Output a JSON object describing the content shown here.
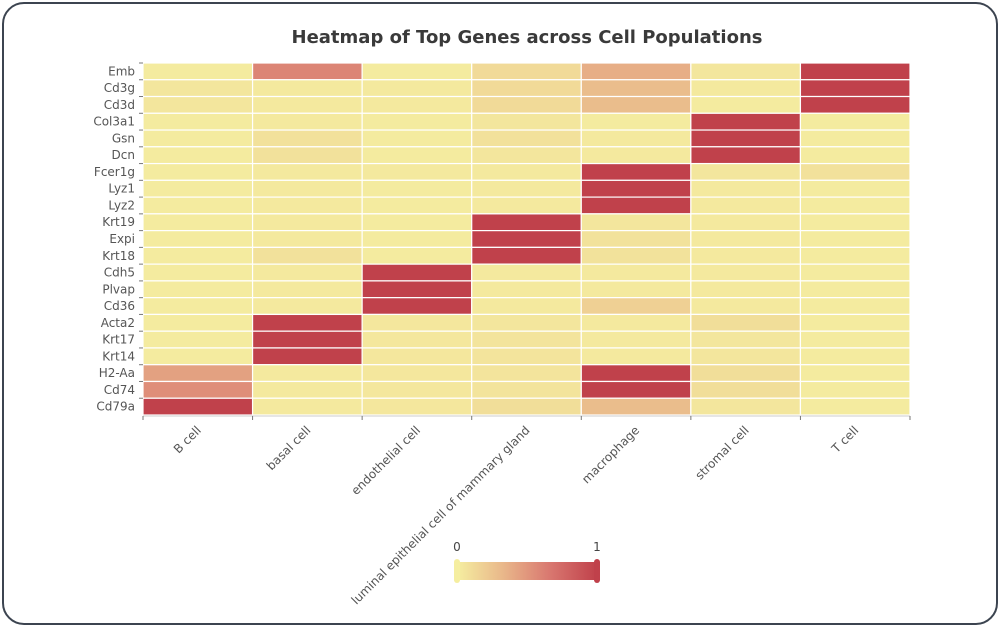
{
  "chart_data": {
    "type": "heatmap",
    "title": "Heatmap of Top Genes across Cell Populations",
    "xlabel": "",
    "ylabel": "",
    "x_categories": [
      "B cell",
      "basal cell",
      "endothelial cell",
      "luminal epithelial cell of mammary gland",
      "macrophage",
      "stromal cell",
      "T cell"
    ],
    "y_categories": [
      "Emb",
      "Cd3g",
      "Cd3d",
      "Col3a1",
      "Gsn",
      "Dcn",
      "Fcer1g",
      "Lyz1",
      "Lyz2",
      "Krt19",
      "Expi",
      "Krt18",
      "Cdh5",
      "Plvap",
      "Cd36",
      "Acta2",
      "Krt17",
      "Krt14",
      "H2-Aa",
      "Cd74",
      "Cd79a"
    ],
    "values": [
      [
        0.02,
        0.6,
        0.02,
        0.12,
        0.38,
        0.05,
        1.0
      ],
      [
        0.05,
        0.03,
        0.03,
        0.12,
        0.3,
        0.03,
        1.0
      ],
      [
        0.05,
        0.03,
        0.03,
        0.12,
        0.3,
        0.02,
        1.0
      ],
      [
        0.02,
        0.03,
        0.02,
        0.05,
        0.02,
        1.0,
        0.02
      ],
      [
        0.02,
        0.08,
        0.02,
        0.08,
        0.03,
        1.0,
        0.02
      ],
      [
        0.02,
        0.08,
        0.02,
        0.05,
        0.03,
        1.0,
        0.02
      ],
      [
        0.02,
        0.03,
        0.03,
        0.03,
        1.0,
        0.05,
        0.08
      ],
      [
        0.02,
        0.03,
        0.02,
        0.03,
        1.0,
        0.03,
        0.02
      ],
      [
        0.02,
        0.03,
        0.02,
        0.03,
        1.0,
        0.03,
        0.02
      ],
      [
        0.02,
        0.03,
        0.02,
        1.0,
        0.05,
        0.03,
        0.02
      ],
      [
        0.02,
        0.03,
        0.02,
        1.0,
        0.07,
        0.03,
        0.02
      ],
      [
        0.02,
        0.08,
        0.02,
        1.0,
        0.07,
        0.03,
        0.02
      ],
      [
        0.02,
        0.03,
        1.0,
        0.03,
        0.03,
        0.03,
        0.02
      ],
      [
        0.02,
        0.03,
        1.0,
        0.03,
        0.03,
        0.03,
        0.02
      ],
      [
        0.02,
        0.03,
        1.0,
        0.03,
        0.18,
        0.03,
        0.02
      ],
      [
        0.02,
        1.0,
        0.04,
        0.05,
        0.03,
        0.1,
        0.02
      ],
      [
        0.02,
        1.0,
        0.04,
        0.06,
        0.03,
        0.05,
        0.02
      ],
      [
        0.02,
        1.0,
        0.04,
        0.06,
        0.03,
        0.05,
        0.02
      ],
      [
        0.45,
        0.03,
        0.04,
        0.06,
        1.0,
        0.1,
        0.02
      ],
      [
        0.55,
        0.03,
        0.04,
        0.06,
        1.0,
        0.1,
        0.02
      ],
      [
        1.0,
        0.03,
        0.04,
        0.1,
        0.3,
        0.05,
        0.02
      ]
    ],
    "value_range": [
      0,
      1
    ],
    "colorscale": [
      "#f5eea0",
      "#e9b78a",
      "#d97870",
      "#c0414b"
    ],
    "legend": {
      "type": "continuous",
      "min_label": "0",
      "max_label": "1",
      "placement": "bottom-center"
    },
    "grid": false
  }
}
